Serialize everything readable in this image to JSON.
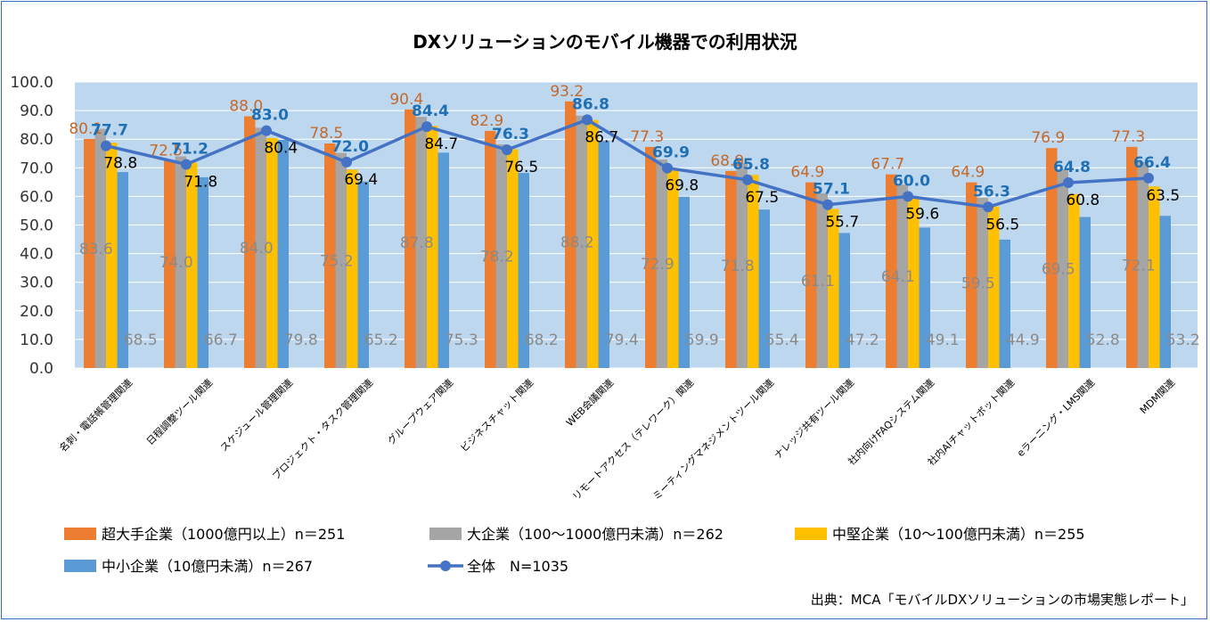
{
  "chart_data": {
    "type": "bar",
    "title": "DXソリューションのモバイル機器での利用状況",
    "source": "出典：MCA「モバイルDXソリューションの市場実態レポート」",
    "ylim": [
      0,
      100
    ],
    "yticks": [
      "0.0",
      "10.0",
      "20.0",
      "30.0",
      "40.0",
      "50.0",
      "60.0",
      "70.0",
      "80.0",
      "90.0",
      "100.0"
    ],
    "categories": [
      "名刺・電話帳管理関連",
      "日程調整ツール関連",
      "スケジュール管理関連",
      "プロジェクト・タスク管理関連",
      "グループウェア関連",
      "ビジネスチャット関連",
      "WEB会議関連",
      "リモートアクセス（テレワーク）関連",
      "ミーティングマネジメントツール関連",
      "ナレッジ共有ツール関連",
      "社内向けFAQシステム関連",
      "社内AIチャットボット関連",
      "eラーニング・LMS関連",
      "MDM関連"
    ],
    "series": [
      {
        "name": "超大手企業（1000億円以上）n＝251",
        "color": "#ed7d31",
        "values": [
          80.1,
          72.5,
          88.0,
          78.5,
          90.4,
          82.9,
          93.2,
          77.3,
          68.9,
          64.9,
          67.7,
          64.9,
          76.9,
          77.3
        ]
      },
      {
        "name": "大企業（100～1000億円未満）n＝262",
        "color": "#a5a5a5",
        "values": [
          83.6,
          74.0,
          84.0,
          75.2,
          87.8,
          78.2,
          88.2,
          72.9,
          71.8,
          61.1,
          64.1,
          59.5,
          69.5,
          72.1
        ]
      },
      {
        "name": "中堅企業（10～100億円未満）n＝255",
        "color": "#ffc000",
        "values": [
          78.8,
          71.8,
          80.4,
          69.4,
          84.7,
          76.5,
          86.7,
          69.8,
          67.5,
          55.7,
          59.6,
          56.5,
          60.8,
          63.5
        ]
      },
      {
        "name": "中小企業（10億円未満）n＝267",
        "color": "#5b9bd5",
        "values": [
          68.5,
          66.7,
          79.8,
          65.2,
          75.3,
          68.2,
          79.4,
          59.9,
          55.4,
          47.2,
          49.1,
          44.9,
          52.8,
          53.2
        ]
      }
    ],
    "line": {
      "name": "全体　N=1035",
      "color": "#4472c4",
      "values": [
        77.7,
        71.2,
        83.0,
        72.0,
        84.4,
        76.3,
        86.8,
        69.9,
        65.8,
        57.1,
        60.0,
        56.3,
        64.8,
        66.4
      ]
    },
    "plot_background": "#bdd7ee",
    "grid": true,
    "legend_position": "bottom"
  }
}
